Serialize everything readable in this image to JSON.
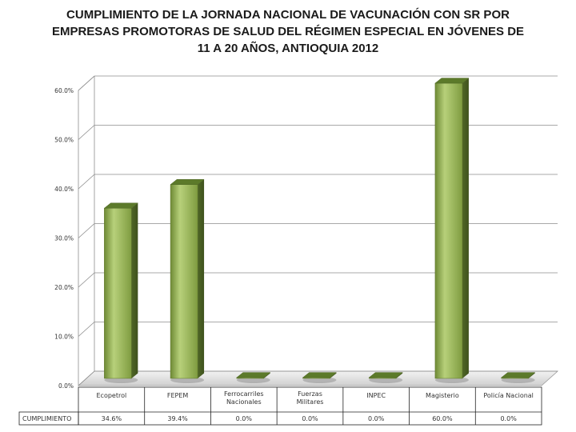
{
  "chart_data": {
    "type": "bar",
    "title_lines": [
      "CUMPLIMIENTO DE LA JORNADA NACIONAL DE VACUNACIÓN CON SR POR",
      "EMPRESAS  PROMOTORAS  DE  SALUD DEL RÉGIMEN ESPECIAL  EN JÓVENES DE",
      "11 A 20 AÑOS, ANTIOQUIA 2012"
    ],
    "categories": [
      [
        "Ecopetrol"
      ],
      [
        "FEPEM"
      ],
      [
        "Ferrocarriles",
        "Nacionales"
      ],
      [
        "Fuerzas",
        "Militares"
      ],
      [
        "INPEC"
      ],
      [
        "Magisterio"
      ],
      [
        "Policía Nacional"
      ]
    ],
    "series": [
      {
        "name": "CUMPLIMIENTO",
        "values": [
          34.6,
          39.4,
          0.0,
          0.0,
          0.0,
          60.0,
          0.0
        ],
        "value_labels": [
          "34.6%",
          "39.4%",
          "0.0%",
          "0.0%",
          "0.0%",
          "60.0%",
          "0.0%"
        ]
      }
    ],
    "ylim": [
      0,
      60
    ],
    "yticks": [
      0,
      10,
      20,
      30,
      40,
      50,
      60
    ],
    "ytick_labels": [
      "0.0%",
      "10.0%",
      "20.0%",
      "30.0%",
      "40.0%",
      "50.0%",
      "60.0%"
    ],
    "grid": true,
    "data_table": true,
    "bar_color": "#9bbb59"
  }
}
